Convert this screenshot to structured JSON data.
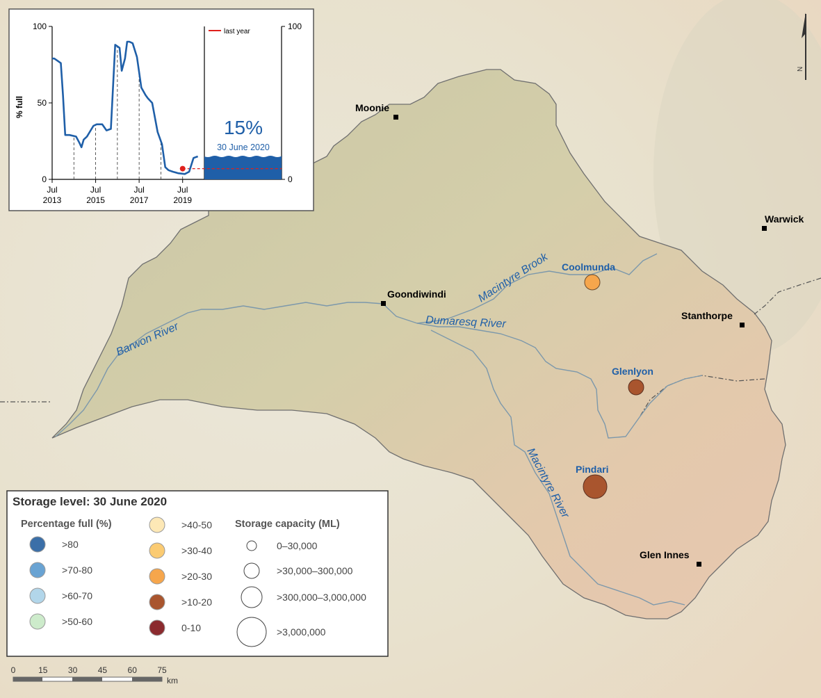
{
  "map": {
    "towns": [
      {
        "name": "Moonie"
      },
      {
        "name": "Goondiwindi"
      },
      {
        "name": "Warwick"
      },
      {
        "name": "Stanthorpe"
      },
      {
        "name": "Glen Innes"
      }
    ],
    "rivers": [
      {
        "name": "Barwon River"
      },
      {
        "name": "Dumaresq River"
      },
      {
        "name": "Macintyre Brook"
      },
      {
        "name": "Macintyre River"
      }
    ],
    "storages": [
      {
        "name": "Coolmunda",
        "color": "#f6a64c",
        "category": ">20-30",
        "capacity_class": ">30,000–300,000"
      },
      {
        "name": "Glenlyon",
        "color": "#a9552e",
        "category": ">10-20",
        "capacity_class": ">30,000–300,000"
      },
      {
        "name": "Pindari",
        "color": "#a9552e",
        "category": ">10-20",
        "capacity_class": ">300,000–3,000,000"
      }
    ],
    "north_label": "N"
  },
  "inset": {
    "y_axis_label": "% full",
    "y_ticks": [
      "100",
      "50",
      "0"
    ],
    "right_ticks": [
      "100",
      "0"
    ],
    "x_ticks": [
      {
        "month": "Jul",
        "year": "2013"
      },
      {
        "month": "Jul",
        "year": "2015"
      },
      {
        "month": "Jul",
        "year": "2017"
      },
      {
        "month": "Jul",
        "year": "2019"
      }
    ],
    "legend_label": "last year",
    "current_value": "15%",
    "current_date": "30 June 2020",
    "colors": {
      "series": "#1f5fa8",
      "last_year": "#e0201c",
      "fill": "#1f5fa8"
    }
  },
  "chart_data": {
    "type": "line",
    "title": "",
    "ylabel": "% full",
    "ylim": [
      0,
      100
    ],
    "x_ticks": [
      "Jul 2013",
      "Jul 2015",
      "Jul 2017",
      "Jul 2019"
    ],
    "series": [
      {
        "values_note": "",
        "x": [
          2013.5,
          2013.6,
          2013.8,
          2013.9,
          2014.0,
          2014.1,
          2014.3,
          2014.6,
          2014.75,
          2014.85,
          2014.95,
          2015.1,
          2015.4,
          2015.55,
          2015.8,
          2016.0,
          2016.2,
          2016.4,
          2016.6,
          2016.7,
          2016.85,
          2016.95,
          2017.05,
          2017.2,
          2017.4,
          2017.6,
          2017.8,
          2017.9,
          2018.1,
          2018.35,
          2018.55,
          2018.7,
          2018.85,
          2019.05,
          2019.3,
          2019.6,
          2019.8,
          2020.0,
          2020.2
        ],
        "y": [
          79,
          79,
          77,
          76,
          55,
          29,
          29,
          28,
          24,
          21,
          26,
          28,
          35,
          36,
          36,
          32,
          33,
          88,
          86,
          71,
          79,
          90,
          90,
          89,
          80,
          60,
          55,
          53,
          50,
          31,
          23,
          8,
          6,
          5,
          4,
          3.5,
          5,
          14,
          15
        ]
      },
      {
        "name": "last year",
        "x": [
          2019.5,
          2020.5
        ],
        "y": [
          7,
          7
        ]
      }
    ],
    "current": {
      "value": 15,
      "date": "30 June 2020"
    },
    "right_axis": {
      "ylim": [
        0,
        100
      ]
    }
  },
  "legend": {
    "title": "Storage level: 30 June 2020",
    "percent_heading": "Percentage full (%)",
    "percent_items": [
      {
        "label": ">80",
        "color": "#3b6fa8"
      },
      {
        "label": ">70-80",
        "color": "#69a3d3"
      },
      {
        "label": ">60-70",
        "color": "#b2d6ea"
      },
      {
        "label": ">50-60",
        "color": "#cdebcb"
      },
      {
        "label": ">40-50",
        "color": "#fde8b6"
      },
      {
        "label": ">30-40",
        "color": "#fbcb72"
      },
      {
        "label": ">20-30",
        "color": "#f6a64c"
      },
      {
        "label": ">10-20",
        "color": "#a9552e"
      },
      {
        "label": "0-10",
        "color": "#8b2a2e"
      }
    ],
    "capacity_heading": "Storage capacity (ML)",
    "capacity_items": [
      {
        "label": "0–30,000"
      },
      {
        "label": ">30,000–300,000"
      },
      {
        "label": ">300,000–3,000,000"
      },
      {
        "label": ">3,000,000"
      }
    ]
  },
  "scale_bar": {
    "ticks": [
      "0",
      "15",
      "30",
      "45",
      "60",
      "75"
    ],
    "unit": "km"
  }
}
